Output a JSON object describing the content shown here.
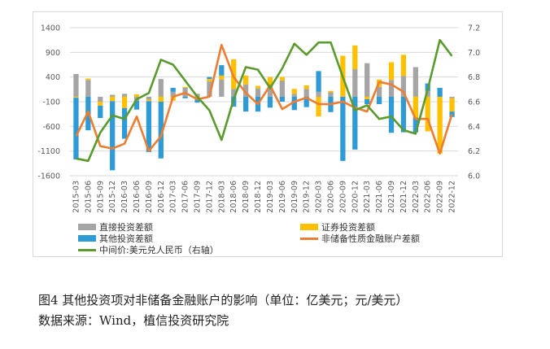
{
  "caption": {
    "title": "图4  其他投资项对非储备金融账户的影响（单位：亿美元；元/美元）",
    "source": "数据来源：Wind，植信投资研究院"
  },
  "colors": {
    "direct": "#a5a5a5",
    "portfolio": "#ffc000",
    "other": "#2e9ad6",
    "nonreserve": "#ed7d31",
    "fx": "#5a9a2e"
  },
  "chart_data": {
    "type": "bar",
    "bar_mode": "stacked",
    "y_left": {
      "min": -1600,
      "max": 1400,
      "ticks": [
        "1400",
        "900",
        "400",
        "-100",
        "-600",
        "-1100",
        "-1600"
      ]
    },
    "y_right": {
      "min": 6.0,
      "max": 7.2,
      "ticks": [
        "7.2",
        "7.0",
        "6.8",
        "6.6",
        "6.4",
        "6.2",
        "6.0"
      ]
    },
    "categories": [
      "2015-03",
      "2015-06",
      "2015-09",
      "2015-12",
      "2016-03",
      "2016-06",
      "2016-09",
      "2016-12",
      "2017-03",
      "2017-06",
      "2017-09",
      "2017-12",
      "2018-03",
      "2018-06",
      "2018-09",
      "2018-12",
      "2019-03",
      "2019-06",
      "2019-09",
      "2019-12",
      "2020-03",
      "2020-06",
      "2020-09",
      "2020-12",
      "2021-03",
      "2021-06",
      "2021-09",
      "2021-12",
      "2022-03",
      "2022-06",
      "2022-09",
      "2022-12"
    ],
    "x_tick_labels": [
      "2015-03",
      "2015-06",
      "2015-09",
      "2015-12",
      "2016-03",
      "2016-06",
      "2016-09",
      "2016-12",
      "2017-03",
      "2017-06",
      "2017-09",
      "2017-12",
      "2018-03",
      "2018-06",
      "2018-09",
      "2018-12",
      "2019-03",
      "2019-06",
      "2019-09",
      "2019-12",
      "2020-03",
      "2020-06",
      "2020-09",
      "2020-12",
      "2021-03",
      "2021-06",
      "2021-09",
      "2021-12",
      "2022-03",
      "2022-06",
      "2022-09",
      "2022-12"
    ],
    "series": [
      {
        "name": "直接投资差额",
        "kind": "bar",
        "axis": "left",
        "values": [
          460,
          340,
          -100,
          40,
          60,
          -80,
          -60,
          360,
          100,
          180,
          60,
          310,
          350,
          160,
          250,
          170,
          160,
          330,
          60,
          160,
          100,
          90,
          0,
          560,
          680,
          200,
          340,
          420,
          600,
          120,
          0,
          -30
        ]
      },
      {
        "name": "证券投资差额",
        "kind": "bar",
        "axis": "left",
        "values": [
          -20,
          30,
          -80,
          -90,
          -230,
          50,
          -30,
          -100,
          -80,
          20,
          -60,
          50,
          80,
          600,
          180,
          50,
          240,
          70,
          100,
          70,
          -400,
          30,
          830,
          480,
          -50,
          150,
          360,
          430,
          -420,
          -700,
          -1150,
          -270
        ]
      },
      {
        "name": "其他投资差额",
        "kind": "bar",
        "axis": "left",
        "values": [
          -1250,
          -680,
          -250,
          -1400,
          -620,
          -180,
          -1030,
          -1150,
          80,
          -30,
          -60,
          40,
          210,
          -200,
          -300,
          -300,
          -220,
          -100,
          -270,
          -210,
          420,
          -310,
          -1300,
          -1070,
          -100,
          -150,
          -730,
          -720,
          -300,
          150,
          180,
          -110
        ]
      },
      {
        "name": "非储备性质金融账户差额",
        "kind": "line",
        "axis": "left",
        "values": [
          -800,
          -300,
          -1000,
          -1050,
          -950,
          -400,
          -1100,
          -800,
          0,
          80,
          -50,
          0,
          1050,
          400,
          80,
          -150,
          230,
          -250,
          -100,
          -20,
          -150,
          -150,
          -100,
          -220,
          -300,
          300,
          250,
          100,
          -450,
          -450,
          -1150,
          -350
        ]
      },
      {
        "name": "中间价:美元兑人民币（右轴）",
        "kind": "line",
        "axis": "right",
        "values": [
          6.14,
          6.12,
          6.35,
          6.49,
          6.46,
          6.62,
          6.67,
          6.94,
          6.9,
          6.77,
          6.64,
          6.53,
          6.29,
          6.62,
          6.88,
          6.86,
          6.71,
          6.87,
          7.07,
          6.98,
          7.08,
          7.08,
          6.8,
          6.53,
          6.57,
          6.46,
          6.48,
          6.37,
          6.34,
          6.7,
          7.1,
          6.97
        ]
      }
    ]
  }
}
